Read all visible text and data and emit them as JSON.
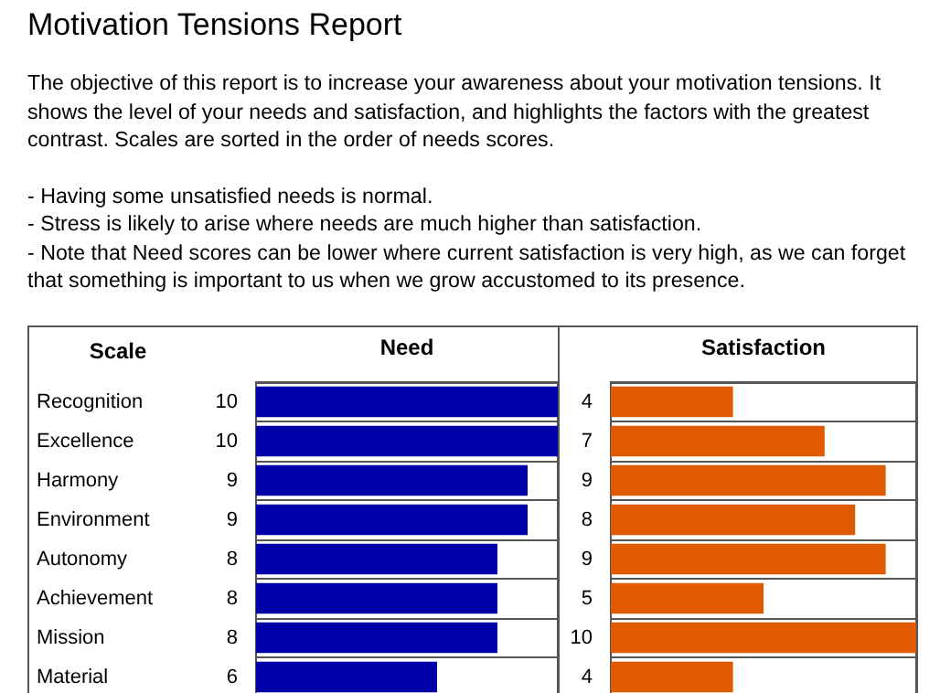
{
  "chart_data": [
    {
      "type": "bar",
      "orientation": "horizontal",
      "title": "Motivation Tensions Report",
      "subtitle": "The objective of this report is to increase your awareness about your motivation tensions. It shows the level of your needs and satisfaction, and highlights the factors with the greatest contrast. Scales are sorted in the order of needs scores.",
      "annotations": [
        "- Having some unsatisfied needs is normal.",
        "- Stress is likely to arise where needs are much higher than satisfaction.",
        "- Note that Need scores can be lower where current satisfaction is very high, as we can forget that something is important to us when we grow accustomed to its presence."
      ],
      "ylabel": "Scale",
      "xlabel": "Need",
      "categories": [
        "Recognition",
        "Excellence",
        "Harmony",
        "Environment",
        "Autonomy",
        "Achievement",
        "Mission",
        "Material"
      ],
      "values": [
        10,
        10,
        9,
        9,
        8,
        8,
        8,
        6
      ],
      "color": "#0000a8",
      "xlim": [
        0,
        10
      ],
      "data_labels": true,
      "grid": "y",
      "tick_labels": "y"
    },
    {
      "type": "bar",
      "orientation": "horizontal",
      "xlabel": "Satisfaction",
      "categories": [
        null,
        null,
        null,
        null,
        null,
        null,
        null,
        null
      ],
      "values": [
        4,
        7,
        9,
        8,
        9,
        5,
        10,
        4
      ],
      "color": "#e05a00",
      "xlim": [
        0,
        10
      ],
      "data_labels": true,
      "grid": "y",
      "tick_labels": false
    }
  ]
}
